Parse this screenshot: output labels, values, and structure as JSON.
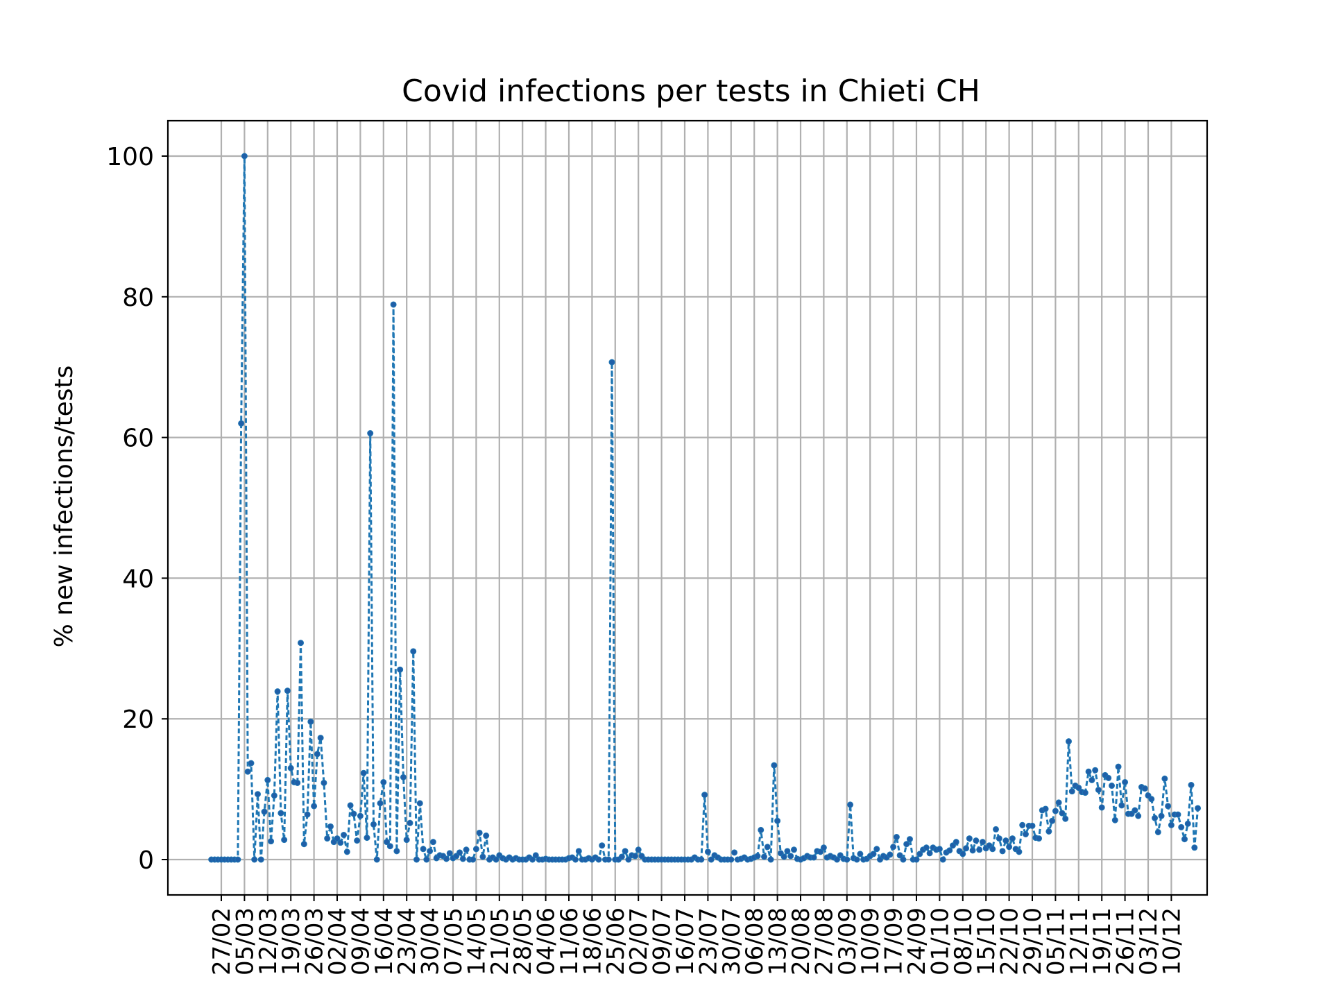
{
  "chart_data": {
    "type": "line",
    "title": "Covid infections per tests in Chieti CH",
    "xlabel": "",
    "ylabel": "% new infections/tests",
    "ylim": [
      -5,
      105
    ],
    "yticks": [
      0,
      20,
      40,
      60,
      80,
      100
    ],
    "grid": true,
    "line_style": "dashed",
    "marker": "dot",
    "colors": {
      "line": "#1f77b4",
      "marker": "#1f5fa8"
    },
    "xticks": [
      "27/02",
      "05/03",
      "12/03",
      "19/03",
      "26/03",
      "02/04",
      "09/04",
      "16/04",
      "23/04",
      "30/04",
      "07/05",
      "14/05",
      "21/05",
      "28/05",
      "04/06",
      "11/06",
      "18/06",
      "25/06",
      "02/07",
      "09/07",
      "16/07",
      "23/07",
      "30/07",
      "06/08",
      "13/08",
      "20/08",
      "27/08",
      "03/09",
      "10/09",
      "17/09",
      "24/09",
      "01/10",
      "08/10",
      "15/10",
      "22/10",
      "29/10",
      "05/11",
      "12/11",
      "19/11",
      "26/11",
      "03/12",
      "10/12"
    ],
    "series": [
      {
        "name": "",
        "x_start": "24/02",
        "x_step_days": 1,
        "values": [
          0,
          0,
          0,
          0,
          0,
          0,
          0,
          0,
          0,
          62,
          100,
          12.5,
          13.7,
          0,
          9.3,
          0,
          6.8,
          11.3,
          2.6,
          9.1,
          23.9,
          6.6,
          2.8,
          24,
          13,
          11,
          10.9,
          30.8,
          2.2,
          6.4,
          19.6,
          7.6,
          15,
          17.3,
          10.9,
          3,
          4.7,
          2.5,
          3,
          2.4,
          3.5,
          1.1,
          7.7,
          6.5,
          2.7,
          6.2,
          12.3,
          3.1,
          60.6,
          5,
          0,
          8,
          11,
          2.5,
          1.9,
          78.9,
          1.2,
          27,
          11.7,
          2.8,
          5.2,
          29.6,
          0,
          8,
          1.5,
          0,
          1.2,
          2.5,
          0.2,
          0.6,
          0.5,
          0.1,
          0.9,
          0.2,
          0.5,
          1,
          0.1,
          1.4,
          0,
          0,
          1.5,
          3.8,
          0.4,
          3.4,
          0,
          0.3,
          0,
          0.6,
          0.2,
          0,
          0.3,
          0,
          0.2,
          0,
          0,
          0,
          0.3,
          0,
          0.6,
          0,
          0,
          0.1,
          0,
          0,
          0,
          0,
          0,
          0,
          0.2,
          0.3,
          0,
          1.2,
          0,
          0,
          0.2,
          0,
          0.3,
          0,
          2,
          0,
          0,
          70.7,
          0,
          0,
          0.4,
          1.2,
          0,
          0.6,
          0.5,
          1.4,
          0.5,
          0,
          0,
          0,
          0,
          0,
          0,
          0,
          0,
          0,
          0,
          0,
          0,
          0,
          0,
          0,
          0.3,
          0,
          0,
          9.2,
          1.1,
          0,
          0.6,
          0.3,
          0,
          0,
          0,
          0,
          1,
          0,
          0.1,
          0.3,
          0,
          0.1,
          0.3,
          0.5,
          4.2,
          0.4,
          1.8,
          0,
          13.4,
          5.5,
          0.9,
          0.4,
          1.2,
          0.5,
          1.4,
          0.1,
          0,
          0.2,
          0.5,
          0.3,
          0.3,
          1.2,
          1.1,
          1.7,
          0.3,
          0.5,
          0.3,
          0,
          0.6,
          0.1,
          0,
          7.8,
          0.2,
          0,
          0.8,
          0,
          0.1,
          0.5,
          0.8,
          1.5,
          0,
          0.5,
          0.3,
          0.7,
          1.8,
          3.2,
          0.6,
          0,
          2.2,
          2.9,
          0,
          0,
          0.8,
          1.4,
          1.7,
          0.9,
          1.7,
          1.4,
          1.5,
          0,
          1,
          1.3,
          2,
          2.5,
          1.2,
          0.8,
          1.6,
          3,
          1.3,
          2.7,
          1.4,
          2.5,
          1.6,
          2,
          1.5,
          4.3,
          3,
          1.2,
          2.7,
          1.8,
          3,
          1.5,
          1.1,
          4.9,
          3.6,
          4.8,
          4.8,
          3.1,
          3,
          7,
          7.2,
          4,
          5.5,
          6.9,
          8.1,
          6.6,
          5.8,
          16.8,
          9.7,
          10.5,
          10.2,
          9.6,
          9.5,
          12.5,
          11.3,
          12.7,
          9.9,
          7.4,
          12,
          11.6,
          10.5,
          5.6,
          13.2,
          7.7,
          11,
          6.5,
          6.5,
          7,
          6.2,
          10.3,
          10.1,
          9.1,
          8.6,
          5.9,
          3.9,
          6.2,
          11.5,
          7.6,
          4.9,
          6.4,
          6.4,
          4.6,
          2.9,
          5.1,
          10.6,
          1.7,
          7.3
        ]
      }
    ]
  }
}
